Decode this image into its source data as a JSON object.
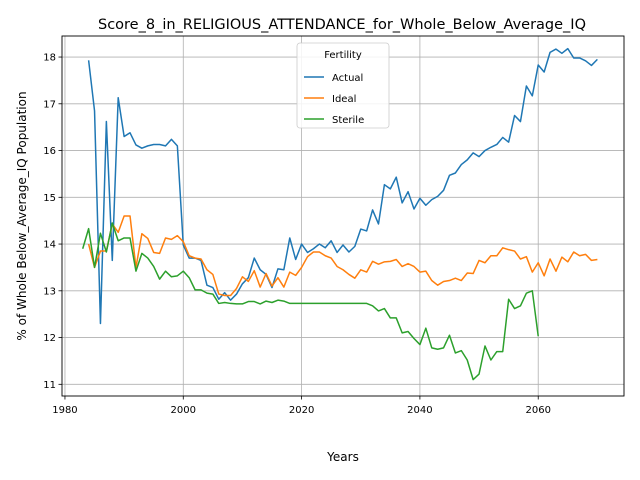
{
  "chart_data": {
    "type": "line",
    "title": "Score_8_in_RELIGIOUS_ATTENDANCE_for_Whole_Below_Average_IQ",
    "xlabel": "Years",
    "ylabel": "% of Whole Below_Average_IQ Population",
    "xlim": [
      1979.5,
      2074.5
    ],
    "ylim": [
      10.75,
      18.45
    ],
    "xticks": [
      1980,
      2000,
      2020,
      2040,
      2060
    ],
    "yticks": [
      11,
      12,
      13,
      14,
      15,
      16,
      17,
      18
    ],
    "grid": true,
    "legend": {
      "title": "Fertility",
      "position": "upper center"
    },
    "series": [
      {
        "name": "Actual",
        "color": "#1f77b4",
        "points": [
          [
            1984,
            17.93
          ],
          [
            1985,
            16.85
          ],
          [
            1986,
            12.3
          ],
          [
            1987,
            16.62
          ],
          [
            1988,
            13.65
          ],
          [
            1989,
            17.13
          ],
          [
            1990,
            16.3
          ],
          [
            1991,
            16.38
          ],
          [
            1992,
            16.12
          ],
          [
            1993,
            16.05
          ],
          [
            1994,
            16.1
          ],
          [
            1995,
            16.13
          ],
          [
            1996,
            16.13
          ],
          [
            1997,
            16.1
          ],
          [
            1998,
            16.24
          ],
          [
            1999,
            16.1
          ],
          [
            2000,
            13.98
          ],
          [
            2001,
            13.7
          ],
          [
            2002,
            13.7
          ],
          [
            2003,
            13.65
          ],
          [
            2004,
            13.12
          ],
          [
            2005,
            13.07
          ],
          [
            2006,
            12.82
          ],
          [
            2007,
            12.96
          ],
          [
            2008,
            12.8
          ],
          [
            2009,
            12.93
          ],
          [
            2010,
            13.15
          ],
          [
            2011,
            13.28
          ],
          [
            2012,
            13.7
          ],
          [
            2013,
            13.45
          ],
          [
            2014,
            13.35
          ],
          [
            2015,
            13.07
          ],
          [
            2016,
            13.47
          ],
          [
            2017,
            13.45
          ],
          [
            2018,
            14.13
          ],
          [
            2019,
            13.67
          ],
          [
            2020,
            14.0
          ],
          [
            2021,
            13.82
          ],
          [
            2022,
            13.9
          ],
          [
            2023,
            14.0
          ],
          [
            2024,
            13.92
          ],
          [
            2025,
            14.07
          ],
          [
            2026,
            13.82
          ],
          [
            2027,
            13.98
          ],
          [
            2028,
            13.83
          ],
          [
            2029,
            13.95
          ],
          [
            2030,
            14.32
          ],
          [
            2031,
            14.28
          ],
          [
            2032,
            14.73
          ],
          [
            2033,
            14.43
          ],
          [
            2034,
            15.27
          ],
          [
            2035,
            15.18
          ],
          [
            2036,
            15.43
          ],
          [
            2037,
            14.88
          ],
          [
            2038,
            15.12
          ],
          [
            2039,
            14.75
          ],
          [
            2040,
            14.98
          ],
          [
            2041,
            14.83
          ],
          [
            2042,
            14.95
          ],
          [
            2043,
            15.02
          ],
          [
            2044,
            15.15
          ],
          [
            2045,
            15.47
          ],
          [
            2046,
            15.52
          ],
          [
            2047,
            15.7
          ],
          [
            2048,
            15.8
          ],
          [
            2049,
            15.95
          ],
          [
            2050,
            15.87
          ],
          [
            2051,
            16.0
          ],
          [
            2052,
            16.07
          ],
          [
            2053,
            16.13
          ],
          [
            2054,
            16.28
          ],
          [
            2055,
            16.18
          ],
          [
            2056,
            16.75
          ],
          [
            2057,
            16.62
          ],
          [
            2058,
            17.38
          ],
          [
            2059,
            17.17
          ],
          [
            2060,
            17.83
          ],
          [
            2061,
            17.68
          ],
          [
            2062,
            18.1
          ],
          [
            2063,
            18.17
          ],
          [
            2064,
            18.08
          ],
          [
            2065,
            18.18
          ],
          [
            2066,
            17.98
          ],
          [
            2067,
            17.98
          ],
          [
            2068,
            17.92
          ],
          [
            2069,
            17.82
          ],
          [
            2070,
            17.95
          ]
        ]
      },
      {
        "name": "Ideal",
        "color": "#ff7f0e",
        "points": [
          [
            1984,
            14.0
          ],
          [
            1985,
            13.5
          ],
          [
            1986,
            13.85
          ],
          [
            1987,
            13.85
          ],
          [
            1988,
            14.43
          ],
          [
            1989,
            14.25
          ],
          [
            1990,
            14.6
          ],
          [
            1991,
            14.6
          ],
          [
            1992,
            13.5
          ],
          [
            1993,
            14.22
          ],
          [
            1994,
            14.12
          ],
          [
            1995,
            13.82
          ],
          [
            1996,
            13.8
          ],
          [
            1997,
            14.13
          ],
          [
            1998,
            14.1
          ],
          [
            1999,
            14.18
          ],
          [
            2000,
            14.05
          ],
          [
            2001,
            13.75
          ],
          [
            2002,
            13.7
          ],
          [
            2003,
            13.68
          ],
          [
            2004,
            13.45
          ],
          [
            2005,
            13.35
          ],
          [
            2006,
            12.93
          ],
          [
            2007,
            12.9
          ],
          [
            2008,
            12.9
          ],
          [
            2009,
            13.05
          ],
          [
            2010,
            13.3
          ],
          [
            2011,
            13.2
          ],
          [
            2012,
            13.43
          ],
          [
            2013,
            13.08
          ],
          [
            2014,
            13.37
          ],
          [
            2015,
            13.1
          ],
          [
            2016,
            13.28
          ],
          [
            2017,
            13.08
          ],
          [
            2018,
            13.4
          ],
          [
            2019,
            13.33
          ],
          [
            2020,
            13.5
          ],
          [
            2021,
            13.73
          ],
          [
            2022,
            13.83
          ],
          [
            2023,
            13.83
          ],
          [
            2024,
            13.75
          ],
          [
            2025,
            13.7
          ],
          [
            2026,
            13.52
          ],
          [
            2027,
            13.45
          ],
          [
            2028,
            13.35
          ],
          [
            2029,
            13.27
          ],
          [
            2030,
            13.45
          ],
          [
            2031,
            13.4
          ],
          [
            2032,
            13.63
          ],
          [
            2033,
            13.57
          ],
          [
            2034,
            13.62
          ],
          [
            2035,
            13.63
          ],
          [
            2036,
            13.67
          ],
          [
            2037,
            13.52
          ],
          [
            2038,
            13.58
          ],
          [
            2039,
            13.52
          ],
          [
            2040,
            13.4
          ],
          [
            2041,
            13.42
          ],
          [
            2042,
            13.22
          ],
          [
            2043,
            13.12
          ],
          [
            2044,
            13.2
          ],
          [
            2045,
            13.22
          ],
          [
            2046,
            13.27
          ],
          [
            2047,
            13.22
          ],
          [
            2048,
            13.38
          ],
          [
            2049,
            13.37
          ],
          [
            2050,
            13.65
          ],
          [
            2051,
            13.6
          ],
          [
            2052,
            13.75
          ],
          [
            2053,
            13.75
          ],
          [
            2054,
            13.92
          ],
          [
            2055,
            13.88
          ],
          [
            2056,
            13.85
          ],
          [
            2057,
            13.68
          ],
          [
            2058,
            13.73
          ],
          [
            2059,
            13.4
          ],
          [
            2060,
            13.6
          ],
          [
            2061,
            13.32
          ],
          [
            2062,
            13.68
          ],
          [
            2063,
            13.42
          ],
          [
            2064,
            13.72
          ],
          [
            2065,
            13.62
          ],
          [
            2066,
            13.83
          ],
          [
            2067,
            13.75
          ],
          [
            2068,
            13.78
          ],
          [
            2069,
            13.65
          ],
          [
            2070,
            13.67
          ]
        ]
      },
      {
        "name": "Sterile",
        "color": "#2ca02c",
        "points": [
          [
            1983,
            13.9
          ],
          [
            1984,
            14.33
          ],
          [
            1985,
            13.5
          ],
          [
            1986,
            14.23
          ],
          [
            1987,
            13.83
          ],
          [
            1988,
            14.45
          ],
          [
            1989,
            14.07
          ],
          [
            1990,
            14.13
          ],
          [
            1991,
            14.13
          ],
          [
            1992,
            13.42
          ],
          [
            1993,
            13.8
          ],
          [
            1994,
            13.7
          ],
          [
            1995,
            13.52
          ],
          [
            1996,
            13.25
          ],
          [
            1997,
            13.42
          ],
          [
            1998,
            13.3
          ],
          [
            1999,
            13.32
          ],
          [
            2000,
            13.42
          ],
          [
            2001,
            13.28
          ],
          [
            2002,
            13.02
          ],
          [
            2003,
            13.02
          ],
          [
            2004,
            12.95
          ],
          [
            2005,
            12.93
          ],
          [
            2006,
            12.73
          ],
          [
            2007,
            12.75
          ],
          [
            2008,
            12.73
          ],
          [
            2009,
            12.72
          ],
          [
            2010,
            12.72
          ],
          [
            2011,
            12.77
          ],
          [
            2012,
            12.77
          ],
          [
            2013,
            12.72
          ],
          [
            2014,
            12.78
          ],
          [
            2015,
            12.75
          ],
          [
            2016,
            12.8
          ],
          [
            2017,
            12.78
          ],
          [
            2018,
            12.73
          ],
          [
            2019,
            12.73
          ],
          [
            2020,
            12.73
          ],
          [
            2021,
            12.73
          ],
          [
            2022,
            12.73
          ],
          [
            2023,
            12.73
          ],
          [
            2024,
            12.73
          ],
          [
            2025,
            12.73
          ],
          [
            2026,
            12.73
          ],
          [
            2027,
            12.73
          ],
          [
            2028,
            12.73
          ],
          [
            2029,
            12.73
          ],
          [
            2030,
            12.73
          ],
          [
            2031,
            12.73
          ],
          [
            2032,
            12.68
          ],
          [
            2033,
            12.57
          ],
          [
            2034,
            12.62
          ],
          [
            2035,
            12.42
          ],
          [
            2036,
            12.42
          ],
          [
            2037,
            12.1
          ],
          [
            2038,
            12.13
          ],
          [
            2039,
            11.98
          ],
          [
            2040,
            11.85
          ],
          [
            2041,
            12.2
          ],
          [
            2042,
            11.78
          ],
          [
            2043,
            11.75
          ],
          [
            2044,
            11.78
          ],
          [
            2045,
            12.05
          ],
          [
            2046,
            11.67
          ],
          [
            2047,
            11.72
          ],
          [
            2048,
            11.52
          ],
          [
            2049,
            11.1
          ],
          [
            2050,
            11.22
          ],
          [
            2051,
            11.82
          ],
          [
            2052,
            11.52
          ],
          [
            2053,
            11.7
          ],
          [
            2054,
            11.7
          ],
          [
            2055,
            12.82
          ],
          [
            2056,
            12.62
          ],
          [
            2057,
            12.68
          ],
          [
            2058,
            12.95
          ],
          [
            2059,
            13.0
          ],
          [
            2060,
            12.03
          ]
        ]
      }
    ]
  }
}
